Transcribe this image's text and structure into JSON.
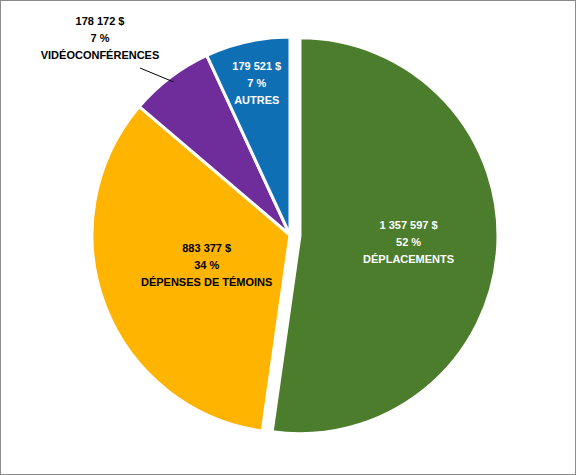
{
  "chart_data": {
    "type": "pie",
    "categories": [
      "DÉPLACEMENTS",
      "DÉPENSES DE TÉMOINS",
      "VIDÉOCONFÉRENCES",
      "AUTRES"
    ],
    "values": [
      1357597,
      883377,
      178172,
      179521
    ],
    "value_labels": [
      "1 357 597 $",
      "883 377 $",
      "178 172 $",
      "179 521 $"
    ],
    "percentages": [
      52,
      34,
      7,
      7
    ],
    "percentage_labels": [
      "52 %",
      "34 %",
      "7 %",
      "7 %"
    ],
    "colors": [
      "#4b7d2d",
      "#ffb400",
      "#6f2d9c",
      "#0f6fb5"
    ],
    "data_labels": true
  }
}
